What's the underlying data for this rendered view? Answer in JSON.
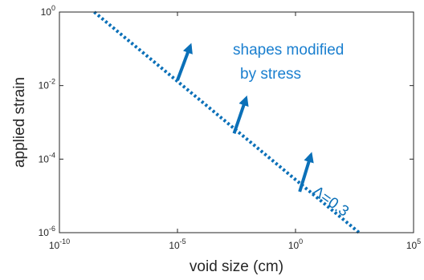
{
  "chart_data": {
    "type": "line",
    "xlabel": "void size (cm)",
    "ylabel": "applied strain",
    "xscale": "log",
    "yscale": "log",
    "xlim": [
      1e-10,
      100000.0
    ],
    "ylim": [
      1e-06,
      1
    ],
    "grid": false,
    "x_ticks": [
      {
        "base": "10",
        "exp": "-10",
        "value": 1e-10
      },
      {
        "base": "10",
        "exp": "-5",
        "value": 1e-05
      },
      {
        "base": "10",
        "exp": "0",
        "value": 1
      },
      {
        "base": "10",
        "exp": "5",
        "value": 100000.0
      }
    ],
    "y_ticks": [
      {
        "base": "10",
        "exp": "-6",
        "value": 1e-06
      },
      {
        "base": "10",
        "exp": "-4",
        "value": 0.0001
      },
      {
        "base": "10",
        "exp": "-2",
        "value": 0.01
      },
      {
        "base": "10",
        "exp": "0",
        "value": 1
      }
    ],
    "series": [
      {
        "style": "dotted",
        "color": "#0b70b8",
        "x": [
          3e-09,
          500.0
        ],
        "y": [
          1.0,
          1e-06
        ]
      }
    ],
    "arrows": [
      {
        "from": [
          1e-05,
          0.014
        ],
        "to": [
          3.5e-05,
          0.12
        ]
      },
      {
        "from": [
          0.0025,
          0.0005
        ],
        "to": [
          0.008,
          0.0045
        ]
      },
      {
        "from": [
          1.5,
          1.3e-05
        ],
        "to": [
          4.5,
          0.00013
        ]
      }
    ],
    "annotations": [
      {
        "text": "shapes modified",
        "color": "#1a7fcf"
      },
      {
        "text": "by stress",
        "color": "#1a7fcf"
      },
      {
        "text": "Λ=0.3",
        "color": "#0b70b8"
      }
    ],
    "colors": {
      "line": "#0b70b8",
      "annotation": "#1a7fcf",
      "axis": "#262626"
    }
  }
}
